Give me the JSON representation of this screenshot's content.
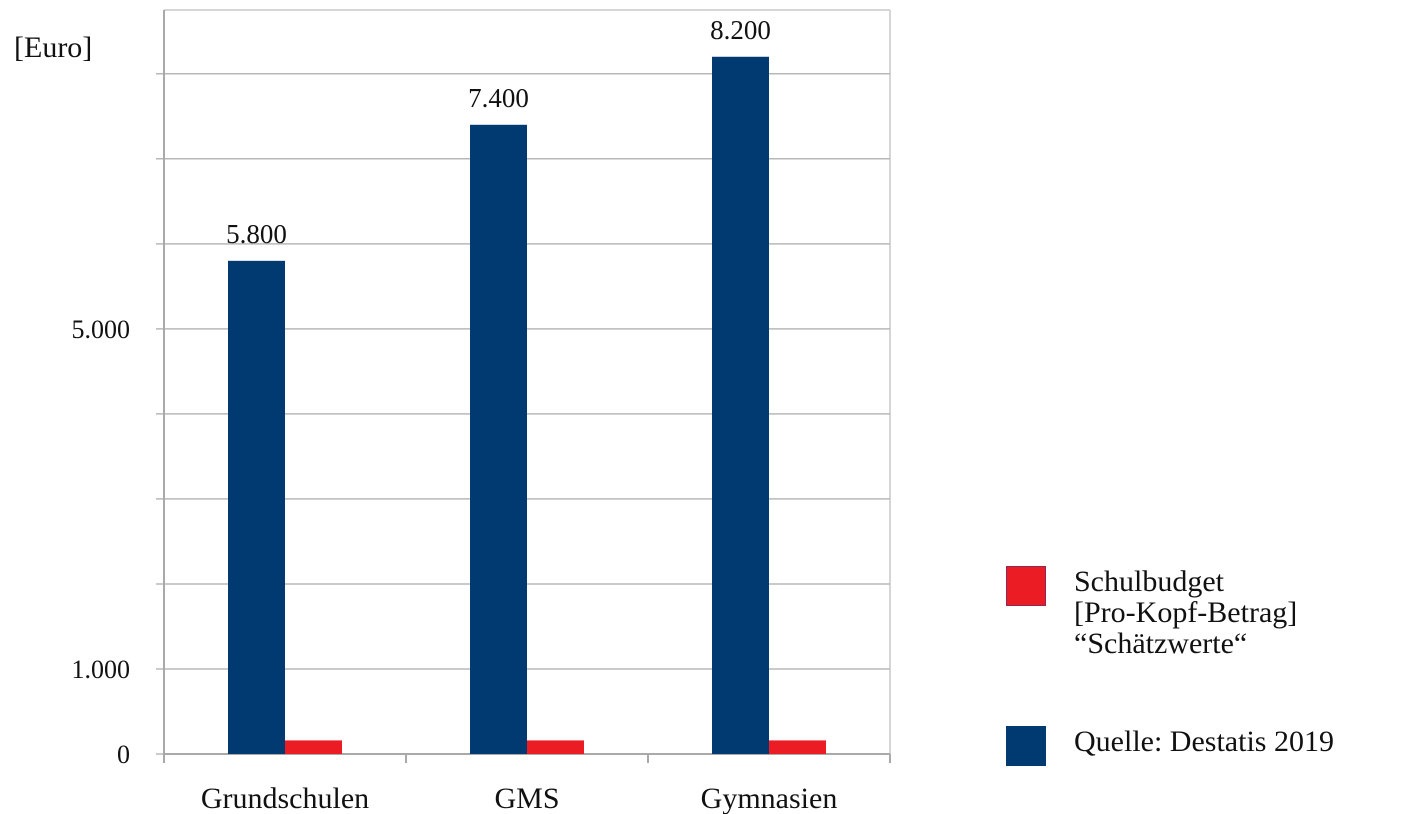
{
  "chart_data": {
    "type": "bar",
    "unit_label": "[Euro]",
    "categories": [
      "Grundschulen",
      "GMS",
      "Gymnasien"
    ],
    "series": [
      {
        "key": "destatis",
        "values": [
          5800,
          7400,
          8200
        ],
        "labels": [
          "5.800",
          "7.400",
          "8.200"
        ],
        "color": "#003a70"
      },
      {
        "key": "schulbudget",
        "values": [
          160,
          160,
          160
        ],
        "labels": [
          "",
          "",
          ""
        ],
        "color": "#ec1c24"
      }
    ],
    "ylim": [
      0,
      8750
    ],
    "y_gridlines": [
      0,
      1000,
      2000,
      3000,
      4000,
      5000,
      6000,
      7000,
      8000
    ],
    "y_tick_labels": [
      {
        "value": 0,
        "label": "0"
      },
      {
        "value": 1000,
        "label": "1.000"
      },
      {
        "value": 5000,
        "label": "5.000"
      }
    ],
    "grid": true,
    "legend_position": "right-bottom"
  },
  "legend": {
    "items": [
      {
        "text": "Schulbudget\n[Pro-Kopf-Betrag]\n“Schätzwerte“",
        "color": "#ec1c24",
        "icon": "red-square"
      },
      {
        "text": "Quelle: Destatis 2019",
        "color": "#003a70",
        "icon": "navy-square"
      }
    ]
  }
}
